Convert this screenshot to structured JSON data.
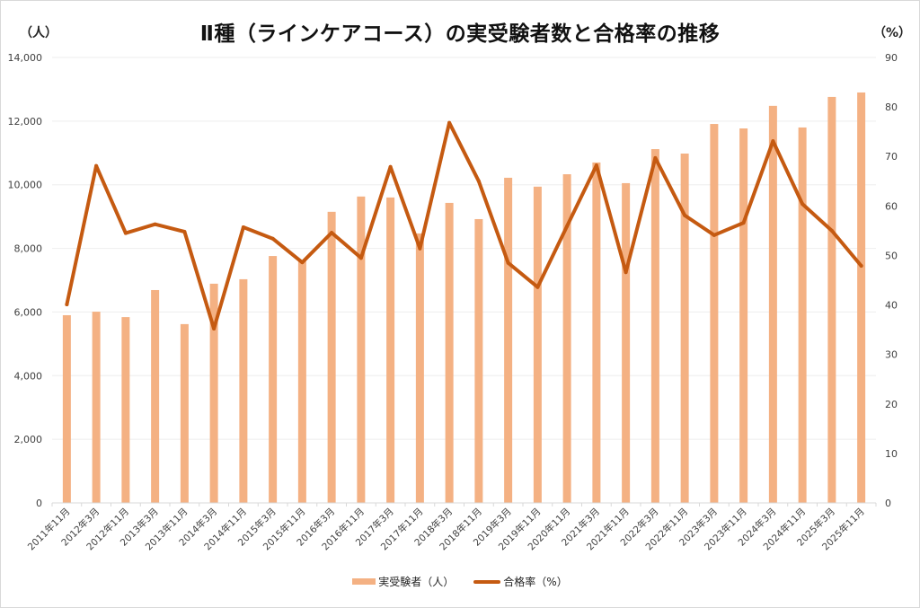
{
  "chart_data": {
    "type": "bar+line",
    "title": "Ⅱ種（ラインケアコース）の実受験者数と合格率の推移",
    "y_left_label": "（人）",
    "y_right_label": "（%）",
    "y_left_lim": [
      0,
      14000
    ],
    "y_right_lim": [
      0,
      90
    ],
    "y_left_ticks": [
      "0",
      "2,000",
      "4,000",
      "6,000",
      "8,000",
      "10,000",
      "12,000",
      "14,000"
    ],
    "y_left_tick_values": [
      0,
      2000,
      4000,
      6000,
      8000,
      10000,
      12000,
      14000
    ],
    "y_right_ticks": [
      "0",
      "10",
      "20",
      "30",
      "40",
      "50",
      "60",
      "70",
      "80",
      "90"
    ],
    "y_right_tick_values": [
      0,
      10,
      20,
      30,
      40,
      50,
      60,
      70,
      80,
      90
    ],
    "grid": true,
    "legend_position": "bottom",
    "categories": [
      "2011年11月",
      "2012年3月",
      "2012年11月",
      "2013年3月",
      "2013年11月",
      "2014年3月",
      "2014年11月",
      "2015年3月",
      "2015年11月",
      "2016年3月",
      "2016年11月",
      "2017年3月",
      "2017年11月",
      "2018年3月",
      "2018年11月",
      "2019年3月",
      "2019年11月",
      "2020年11月",
      "2021年3月",
      "2021年11月",
      "2022年3月",
      "2022年11月",
      "2023年3月",
      "2023年11月",
      "2024年3月",
      "2024年11月",
      "2025年3月",
      "2025年11月"
    ],
    "series": [
      {
        "name": "実受験者（人）",
        "type": "bar",
        "axis": "left",
        "color": "#f4b183",
        "values": [
          5900,
          6010,
          5840,
          6690,
          5620,
          6890,
          7030,
          7760,
          7600,
          9150,
          9630,
          9600,
          8470,
          9430,
          8920,
          10220,
          9940,
          10330,
          10700,
          10050,
          11120,
          10980,
          11910,
          11770,
          12480,
          11800,
          12760,
          12900
        ]
      },
      {
        "name": "合格率（%）",
        "type": "line",
        "axis": "right",
        "color": "#c55a11",
        "values": [
          40.1,
          68.1,
          54.5,
          56.3,
          54.8,
          35.2,
          55.7,
          53.4,
          48.6,
          54.6,
          49.5,
          67.9,
          51.4,
          76.8,
          65.0,
          48.5,
          43.6,
          55.9,
          68.2,
          46.6,
          69.7,
          58.1,
          54.1,
          56.6,
          73.1,
          60.4,
          55.0,
          47.9
        ]
      }
    ]
  }
}
